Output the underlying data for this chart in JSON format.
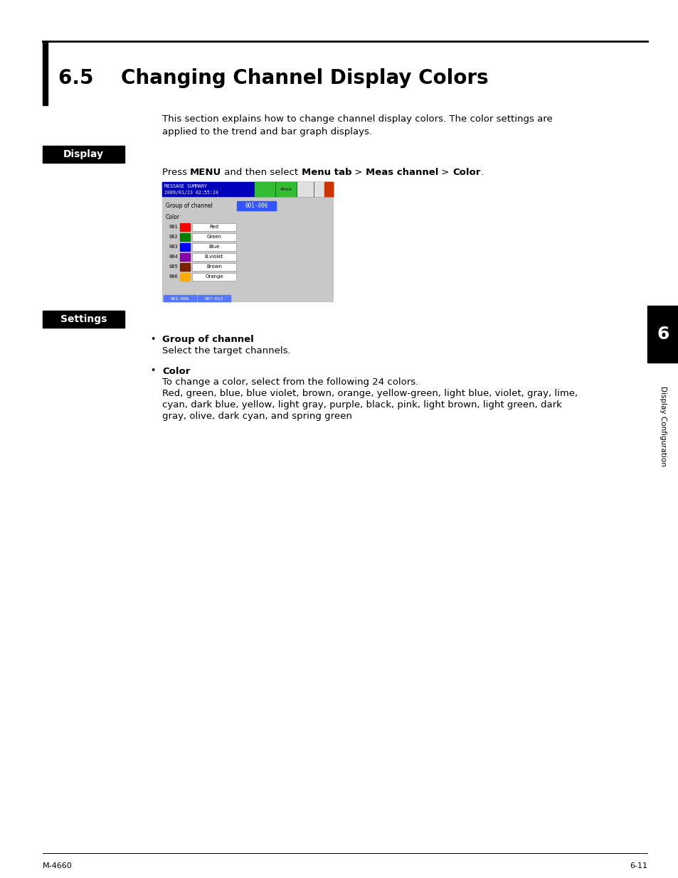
{
  "title_section": "6.5    Changing Channel Display Colors",
  "title_fontsize": 20,
  "body_text_line1": "This section explains how to change channel display colors. The color settings are",
  "body_text_line2": "applied to the trend and bar graph displays.",
  "body_fontsize": 9.5,
  "display_label": "Display",
  "settings_label": "Settings",
  "label_bg_color": "#000000",
  "label_text_color": "#ffffff",
  "label_fontsize": 10,
  "screen_bg": "#c8c8c8",
  "screen_header_bg": "#0000bb",
  "channels": [
    "001",
    "002",
    "003",
    "004",
    "005",
    "006"
  ],
  "channel_colors": [
    "#ff0000",
    "#008000",
    "#0000ff",
    "#8800aa",
    "#7b2000",
    "#ffaa00"
  ],
  "channel_names": [
    "Red",
    "Green",
    "Blue",
    "B.violet",
    "Brown",
    "Orange"
  ],
  "bottom_tabs": [
    "001-006",
    "007-012"
  ],
  "bullet_group_title": "Group of channel",
  "bullet_group_text": "Select the target channels.",
  "bullet_color_title": "Color",
  "bullet_color_text1": "To change a color, select from the following 24 colors.",
  "bullet_color_text2": "Red, green, blue, blue violet, brown, orange, yellow-green, light blue, violet, gray, lime,",
  "bullet_color_text3": "cyan, dark blue, yellow, light gray, purple, black, pink, light brown, light green, dark",
  "bullet_color_text4": "gray, olive, dark cyan, and spring green",
  "sidebar_number": "6",
  "sidebar_text": "Display Configuration",
  "sidebar_bg": "#000000",
  "sidebar_text_color": "#ffffff",
  "footer_left": "M-4660",
  "footer_right": "6-11",
  "footer_fontsize": 8,
  "page_bg": "#ffffff"
}
